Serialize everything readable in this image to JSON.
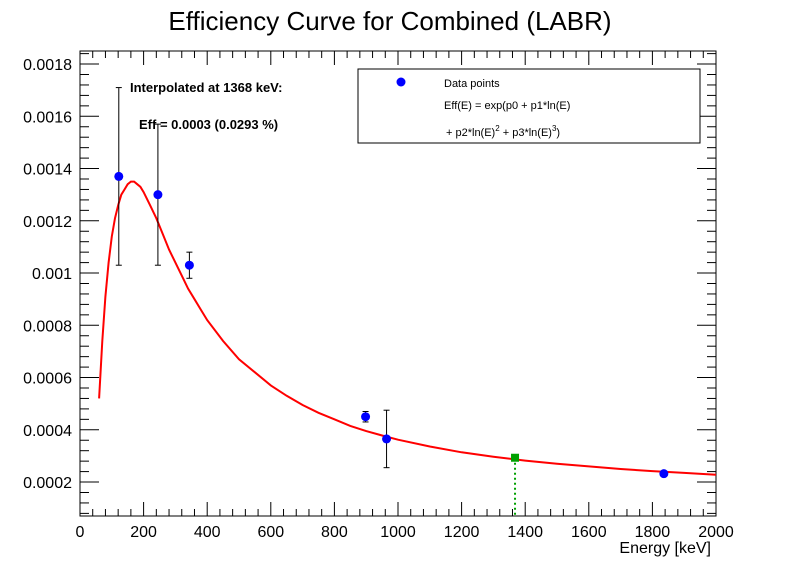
{
  "chart_data": {
    "type": "scatter",
    "title": "Efficiency Curve for Combined (LABR)",
    "xlabel": "Energy [keV]",
    "ylabel": "",
    "xlim": [
      0,
      2000
    ],
    "ylim": [
      7e-05,
      0.00185
    ],
    "x_ticks": [
      0,
      200,
      400,
      600,
      800,
      1000,
      1200,
      1400,
      1600,
      1800,
      2000
    ],
    "y_ticks": [
      0.0002,
      0.0004,
      0.0006,
      0.0008,
      0.001,
      0.0012,
      0.0014,
      0.0016,
      0.0018
    ],
    "x_tick_labels": [
      "0",
      "200",
      "400",
      "600",
      "800",
      "1000",
      "1200",
      "1400",
      "1600",
      "1800",
      "2000"
    ],
    "y_tick_labels": [
      "0.0002",
      "0.0004",
      "0.0006",
      "0.0008",
      "0.001",
      "0.0012",
      "0.0014",
      "0.0016",
      "0.0018"
    ],
    "series": [
      {
        "name": "Data points",
        "color": "#0000ff",
        "points": [
          {
            "x": 122,
            "y": 0.00137,
            "err": 0.00034
          },
          {
            "x": 245,
            "y": 0.0013,
            "err": 0.00027
          },
          {
            "x": 344,
            "y": 0.00103,
            "err": 5e-05
          },
          {
            "x": 898,
            "y": 0.00045,
            "err": 2e-05
          },
          {
            "x": 964,
            "y": 0.000365,
            "err": 0.00011
          },
          {
            "x": 1836,
            "y": 0.000232,
            "err": 5e-06
          }
        ]
      },
      {
        "name": "Eff(E) = exp(p0 + p1*ln(E) + p2*ln(E)^2 + p3*ln(E)^3)",
        "type": "line",
        "color": "#ff0000",
        "x": [
          60,
          70,
          80,
          90,
          100,
          110,
          120,
          130,
          140,
          150,
          160,
          170,
          180,
          190,
          200,
          220,
          240,
          260,
          280,
          300,
          320,
          340,
          360,
          380,
          400,
          450,
          500,
          550,
          600,
          650,
          700,
          750,
          800,
          850,
          900,
          950,
          1000,
          1100,
          1200,
          1300,
          1400,
          1500,
          1600,
          1700,
          1800,
          1900,
          2000
        ],
        "y": [
          0.00052,
          0.00074,
          0.00091,
          0.00104,
          0.00114,
          0.00121,
          0.00126,
          0.0013,
          0.00132,
          0.00134,
          0.00135,
          0.00135,
          0.00134,
          0.00133,
          0.00131,
          0.00126,
          0.00121,
          0.00115,
          0.00109,
          0.00104,
          0.00099,
          0.00094,
          0.0009,
          0.00086,
          0.00082,
          0.00074,
          0.00067,
          0.00062,
          0.00057,
          0.00053,
          0.000495,
          0.000465,
          0.00044,
          0.000415,
          0.000395,
          0.000378,
          0.000362,
          0.000336,
          0.000314,
          0.000297,
          0.000282,
          0.00027,
          0.00026,
          0.00025,
          0.000242,
          0.000235,
          0.000228
        ]
      }
    ],
    "marker": {
      "x": 1368,
      "y": 0.000293,
      "color": "#00a000",
      "line_style": "dotted"
    },
    "legend": {
      "position": "top-right",
      "entries": [
        "Data points"
      ],
      "formula": {
        "line1": "Eff(E) = exp(p0 + p1*ln(E)",
        "line2a": "+ p2*ln(E)",
        "line2b": " + p3*ln(E)",
        "line2c": ")",
        "sup1": "2",
        "sup2": "3"
      }
    },
    "annotations": {
      "line1": "Interpolated at 1368 keV:",
      "line2": "Eff = 0.0003 (0.0293 %)"
    },
    "grid": false
  }
}
